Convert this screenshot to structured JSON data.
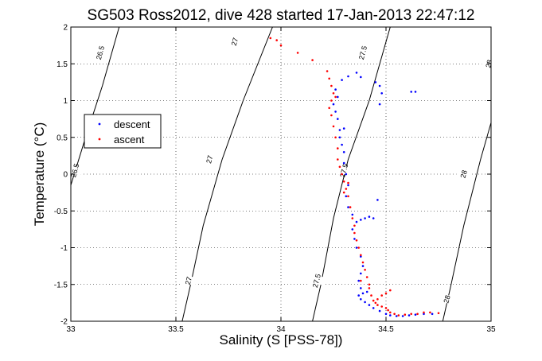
{
  "chart_data": {
    "type": "scatter",
    "title": "SG503 Ross2012, dive 428 started 17-Jan-2013 22:47:12",
    "xlabel": "Salinity (S [PSS-78])",
    "ylabel": "Temperature (°C)",
    "xlim": [
      33,
      35
    ],
    "ylim": [
      -2,
      2
    ],
    "x_ticks": [
      "33",
      "33.5",
      "34",
      "34.5",
      "35"
    ],
    "y_ticks": [
      "-2",
      "-1.5",
      "-1",
      "-0.5",
      "0",
      "0.5",
      "1",
      "1.5",
      "2"
    ],
    "grid": true,
    "legend_position": "left",
    "contours": [
      {
        "label": "26.5",
        "points": [
          [
            33.0,
            -0.15
          ],
          [
            33.07,
            0.5
          ],
          [
            33.15,
            1.2
          ],
          [
            33.23,
            2.0
          ]
        ],
        "label_at": [
          [
            33.02,
            0.05,
            "26.5"
          ],
          [
            33.14,
            1.65,
            "26.5"
          ]
        ]
      },
      {
        "label": "27",
        "points": [
          [
            33.53,
            -2.0
          ],
          [
            33.57,
            -1.5
          ],
          [
            33.63,
            -0.7
          ],
          [
            33.72,
            0.2
          ],
          [
            33.82,
            1.0
          ],
          [
            33.96,
            2.0
          ]
        ],
        "label_at": [
          [
            33.56,
            -1.45,
            "27"
          ],
          [
            33.66,
            0.2,
            "27"
          ],
          [
            33.78,
            1.8,
            "27"
          ]
        ]
      },
      {
        "label": "27.5",
        "points": [
          [
            34.15,
            -2.0
          ],
          [
            34.19,
            -1.5
          ],
          [
            34.25,
            -0.6
          ],
          [
            34.32,
            0.2
          ],
          [
            34.42,
            1.0
          ],
          [
            34.52,
            2.0
          ]
        ],
        "label_at": [
          [
            34.17,
            -1.45,
            "27.5"
          ],
          [
            34.3,
            0.05,
            "27.5"
          ],
          [
            34.39,
            1.65,
            "27.5"
          ]
        ]
      },
      {
        "label": "28",
        "points": [
          [
            34.77,
            -2.0
          ],
          [
            34.81,
            -1.5
          ],
          [
            34.87,
            -0.7
          ],
          [
            34.95,
            0.2
          ],
          [
            35.0,
            0.7
          ]
        ],
        "label_at": [
          [
            34.79,
            -1.7,
            "28"
          ],
          [
            34.87,
            0.0,
            "28"
          ],
          [
            34.99,
            1.5,
            "28"
          ]
        ]
      }
    ],
    "series": [
      {
        "name": "descent",
        "color": "#0000ff",
        "points": [
          [
            34.72,
            -1.9
          ],
          [
            34.68,
            -1.9
          ],
          [
            34.64,
            -1.91
          ],
          [
            34.61,
            -1.92
          ],
          [
            34.58,
            -1.93
          ],
          [
            34.55,
            -1.93
          ],
          [
            34.52,
            -1.92
          ],
          [
            34.5,
            -1.9
          ],
          [
            34.47,
            -1.86
          ],
          [
            34.44,
            -1.82
          ],
          [
            34.42,
            -1.78
          ],
          [
            34.4,
            -1.74
          ],
          [
            34.38,
            -1.7
          ],
          [
            34.37,
            -1.65
          ],
          [
            34.39,
            -1.62
          ],
          [
            34.41,
            -1.6
          ],
          [
            34.38,
            -1.55
          ],
          [
            34.37,
            -1.45
          ],
          [
            34.38,
            -1.35
          ],
          [
            34.39,
            -1.25
          ],
          [
            34.38,
            -1.12
          ],
          [
            34.36,
            -1.0
          ],
          [
            34.35,
            -0.88
          ],
          [
            34.34,
            -0.75
          ],
          [
            34.36,
            -0.65
          ],
          [
            34.38,
            -0.62
          ],
          [
            34.4,
            -0.6
          ],
          [
            34.42,
            -0.58
          ],
          [
            34.44,
            -0.6
          ],
          [
            34.34,
            -0.55
          ],
          [
            34.32,
            -0.45
          ],
          [
            34.31,
            -0.3
          ],
          [
            34.32,
            -0.15
          ],
          [
            34.31,
            0.0
          ],
          [
            34.3,
            0.15
          ],
          [
            34.3,
            0.3
          ],
          [
            34.29,
            0.4
          ],
          [
            34.28,
            0.5
          ],
          [
            34.28,
            0.6
          ],
          [
            34.3,
            0.62
          ],
          [
            34.27,
            0.75
          ],
          [
            34.26,
            0.85
          ],
          [
            34.25,
            0.95
          ],
          [
            34.27,
            1.05
          ],
          [
            34.26,
            1.15
          ],
          [
            34.29,
            1.28
          ],
          [
            34.32,
            1.33
          ],
          [
            34.36,
            1.38
          ],
          [
            34.38,
            1.32
          ],
          [
            34.45,
            1.25
          ],
          [
            34.47,
            1.2
          ],
          [
            34.48,
            1.1
          ],
          [
            34.47,
            0.95
          ],
          [
            34.62,
            1.12
          ],
          [
            34.64,
            1.12
          ],
          [
            34.46,
            -0.35
          ]
        ]
      },
      {
        "name": "ascent",
        "color": "#ff0000",
        "points": [
          [
            34.75,
            -1.89
          ],
          [
            34.71,
            -1.88
          ],
          [
            34.68,
            -1.88
          ],
          [
            34.65,
            -1.9
          ],
          [
            34.62,
            -1.9
          ],
          [
            34.59,
            -1.91
          ],
          [
            34.56,
            -1.92
          ],
          [
            34.54,
            -1.9
          ],
          [
            34.52,
            -1.88
          ],
          [
            34.51,
            -1.85
          ],
          [
            34.5,
            -1.82
          ],
          [
            34.48,
            -1.8
          ],
          [
            34.46,
            -1.78
          ],
          [
            34.45,
            -1.75
          ],
          [
            34.5,
            -1.62
          ],
          [
            34.52,
            -1.58
          ],
          [
            34.48,
            -1.65
          ],
          [
            34.46,
            -1.7
          ],
          [
            34.44,
            -1.72
          ],
          [
            34.43,
            -1.65
          ],
          [
            34.42,
            -1.5
          ],
          [
            34.41,
            -1.4
          ],
          [
            34.4,
            -1.3
          ],
          [
            34.39,
            -1.2
          ],
          [
            34.38,
            -1.1
          ],
          [
            34.37,
            -1.0
          ],
          [
            34.36,
            -0.9
          ],
          [
            34.35,
            -0.8
          ],
          [
            34.35,
            -0.7
          ],
          [
            34.34,
            -0.6
          ],
          [
            34.33,
            -0.45
          ],
          [
            34.32,
            -0.3
          ],
          [
            34.31,
            -0.2
          ],
          [
            34.3,
            -0.1
          ],
          [
            34.29,
            0.0
          ],
          [
            34.28,
            0.1
          ],
          [
            34.27,
            0.2
          ],
          [
            34.27,
            0.35
          ],
          [
            34.26,
            0.5
          ],
          [
            34.25,
            0.65
          ],
          [
            34.24,
            0.8
          ],
          [
            34.23,
            0.9
          ],
          [
            34.24,
            1.0
          ],
          [
            34.25,
            1.1
          ],
          [
            34.24,
            1.2
          ],
          [
            34.23,
            1.3
          ],
          [
            34.22,
            1.4
          ],
          [
            34.15,
            1.55
          ],
          [
            34.08,
            1.65
          ],
          [
            34.0,
            1.75
          ],
          [
            33.98,
            1.82
          ],
          [
            33.95,
            1.85
          ],
          [
            34.3,
            -0.25
          ],
          [
            34.32,
            -0.12
          ],
          [
            34.38,
            -1.45
          ],
          [
            34.42,
            -1.55
          ],
          [
            34.26,
            1.05
          ]
        ]
      }
    ]
  }
}
